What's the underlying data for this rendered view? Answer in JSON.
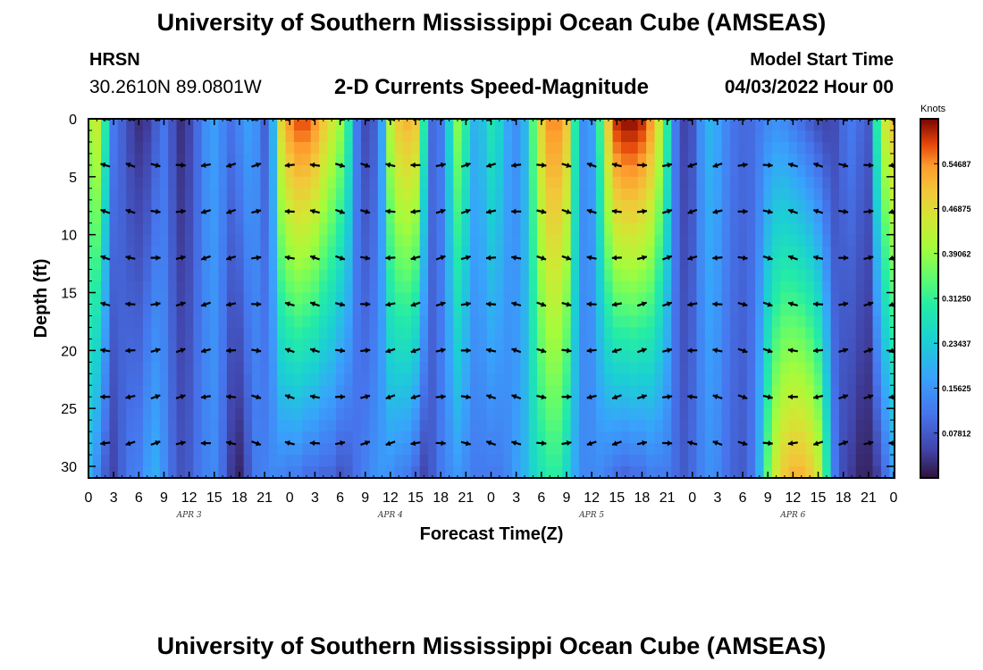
{
  "header": {
    "title": "University of Southern Mississippi Ocean Cube (AMSEAS)",
    "station_id": "HRSN",
    "station_coords": "30.2610N  89.0801W",
    "subtitle": "2-D Currents Speed-Magnitude",
    "model_start_label": "Model Start Time",
    "model_start_value": "04/03/2022 Hour 00"
  },
  "footer": {
    "title": "University of Southern Mississippi Ocean Cube (AMSEAS)"
  },
  "chart_data": {
    "type": "heatmap",
    "title": "2-D Currents Speed-Magnitude",
    "xlabel": "Forecast Time(Z)",
    "ylabel": "Depth (ft)",
    "xlim": [
      0,
      96
    ],
    "ylim": [
      31,
      0
    ],
    "x_ticks": [
      0,
      3,
      6,
      9,
      12,
      15,
      18,
      21,
      24,
      27,
      30,
      33,
      36,
      39,
      42,
      45,
      48,
      51,
      54,
      57,
      60,
      63,
      66,
      69,
      72,
      75,
      78,
      81,
      84,
      87,
      90,
      93,
      96
    ],
    "x_tick_labels": [
      "0",
      "3",
      "6",
      "9",
      "12",
      "15",
      "18",
      "21",
      "0",
      "3",
      "6",
      "9",
      "12",
      "15",
      "18",
      "21",
      "0",
      "3",
      "6",
      "9",
      "12",
      "15",
      "18",
      "21",
      "0",
      "3",
      "6",
      "9",
      "12",
      "15",
      "18",
      "21",
      "0"
    ],
    "day_labels": [
      {
        "text": "APR 3",
        "at_hour": 12
      },
      {
        "text": "APR 4",
        "at_hour": 36
      },
      {
        "text": "APR 5",
        "at_hour": 60
      },
      {
        "text": "APR 6",
        "at_hour": 84
      }
    ],
    "y_ticks": [
      0,
      5,
      10,
      15,
      20,
      25,
      30
    ],
    "y_tick_labels": [
      "0",
      "5",
      "10",
      "15",
      "20",
      "25",
      "30"
    ],
    "colorbar": {
      "title": "Knots",
      "range": [
        0,
        0.625
      ],
      "ticks": [
        0.078125,
        0.15625,
        0.234375,
        0.3125,
        0.390625,
        0.46875,
        0.546875
      ],
      "tick_labels": [
        "0.07812",
        "0.15625",
        "0.23437",
        "0.31250",
        "0.39062",
        "0.46875",
        "0.54687"
      ]
    },
    "arrow_depths_ft": [
      0,
      4,
      8,
      12,
      16,
      20,
      24,
      28
    ],
    "arrow_hours": [
      2,
      5,
      8,
      11,
      14,
      17,
      20,
      24,
      27,
      30,
      33,
      36,
      39,
      42,
      45,
      48,
      51,
      54,
      57,
      60,
      63,
      66,
      69,
      72,
      75,
      78,
      81,
      84,
      87,
      90,
      93,
      96
    ],
    "speed_profiles": [
      {
        "hour": 0,
        "surface": 0.4,
        "bottom": 0.2
      },
      {
        "hour": 1,
        "surface": 0.44,
        "bottom": 0.14
      },
      {
        "hour": 2,
        "surface": 0.3,
        "bottom": 0.08
      },
      {
        "hour": 3,
        "surface": 0.12,
        "bottom": 0.05
      },
      {
        "hour": 4,
        "surface": 0.09,
        "bottom": 0.09
      },
      {
        "hour": 5,
        "surface": 0.05,
        "bottom": 0.12
      },
      {
        "hour": 6,
        "surface": 0.03,
        "bottom": 0.13
      },
      {
        "hour": 7,
        "surface": 0.04,
        "bottom": 0.17
      },
      {
        "hour": 8,
        "surface": 0.08,
        "bottom": 0.19
      },
      {
        "hour": 9,
        "surface": 0.11,
        "bottom": 0.15
      },
      {
        "hour": 10,
        "surface": 0.07,
        "bottom": 0.1
      },
      {
        "hour": 11,
        "surface": 0.03,
        "bottom": 0.07
      },
      {
        "hour": 12,
        "surface": 0.05,
        "bottom": 0.08
      },
      {
        "hour": 13,
        "surface": 0.1,
        "bottom": 0.11
      },
      {
        "hour": 14,
        "surface": 0.15,
        "bottom": 0.13
      },
      {
        "hour": 15,
        "surface": 0.17,
        "bottom": 0.14
      },
      {
        "hour": 16,
        "surface": 0.14,
        "bottom": 0.1
      },
      {
        "hour": 17,
        "surface": 0.11,
        "bottom": 0.04
      },
      {
        "hour": 18,
        "surface": 0.14,
        "bottom": 0.02
      },
      {
        "hour": 19,
        "surface": 0.17,
        "bottom": 0.07
      },
      {
        "hour": 20,
        "surface": 0.15,
        "bottom": 0.12
      },
      {
        "hour": 21,
        "surface": 0.09,
        "bottom": 0.13
      },
      {
        "hour": 22,
        "surface": 0.2,
        "bottom": 0.14
      },
      {
        "hour": 23,
        "surface": 0.48,
        "bottom": 0.13
      },
      {
        "hour": 24,
        "surface": 0.55,
        "bottom": 0.12
      },
      {
        "hour": 25,
        "surface": 0.58,
        "bottom": 0.12
      },
      {
        "hour": 26,
        "surface": 0.58,
        "bottom": 0.1
      },
      {
        "hour": 27,
        "surface": 0.55,
        "bottom": 0.1
      },
      {
        "hour": 28,
        "surface": 0.5,
        "bottom": 0.09
      },
      {
        "hour": 29,
        "surface": 0.45,
        "bottom": 0.09
      },
      {
        "hour": 30,
        "surface": 0.4,
        "bottom": 0.07
      },
      {
        "hour": 31,
        "surface": 0.3,
        "bottom": 0.08
      },
      {
        "hour": 32,
        "surface": 0.12,
        "bottom": 0.11
      },
      {
        "hour": 33,
        "surface": 0.06,
        "bottom": 0.13
      },
      {
        "hour": 34,
        "surface": 0.08,
        "bottom": 0.15
      },
      {
        "hour": 35,
        "surface": 0.18,
        "bottom": 0.16
      },
      {
        "hour": 36,
        "surface": 0.42,
        "bottom": 0.15
      },
      {
        "hour": 37,
        "surface": 0.5,
        "bottom": 0.13
      },
      {
        "hour": 38,
        "surface": 0.52,
        "bottom": 0.12
      },
      {
        "hour": 39,
        "surface": 0.5,
        "bottom": 0.09
      },
      {
        "hour": 40,
        "surface": 0.3,
        "bottom": 0.05
      },
      {
        "hour": 41,
        "surface": 0.1,
        "bottom": 0.08
      },
      {
        "hour": 42,
        "surface": 0.12,
        "bottom": 0.12
      },
      {
        "hour": 43,
        "surface": 0.25,
        "bottom": 0.14
      },
      {
        "hour": 44,
        "surface": 0.38,
        "bottom": 0.16
      },
      {
        "hour": 45,
        "surface": 0.3,
        "bottom": 0.14
      },
      {
        "hour": 46,
        "surface": 0.2,
        "bottom": 0.12
      },
      {
        "hour": 47,
        "surface": 0.22,
        "bottom": 0.12
      },
      {
        "hour": 48,
        "surface": 0.28,
        "bottom": 0.12
      },
      {
        "hour": 49,
        "surface": 0.25,
        "bottom": 0.12
      },
      {
        "hour": 50,
        "surface": 0.18,
        "bottom": 0.14
      },
      {
        "hour": 51,
        "surface": 0.15,
        "bottom": 0.17
      },
      {
        "hour": 52,
        "surface": 0.2,
        "bottom": 0.2
      },
      {
        "hour": 53,
        "surface": 0.34,
        "bottom": 0.25
      },
      {
        "hour": 54,
        "surface": 0.48,
        "bottom": 0.28
      },
      {
        "hour": 55,
        "surface": 0.55,
        "bottom": 0.3
      },
      {
        "hour": 56,
        "surface": 0.55,
        "bottom": 0.3
      },
      {
        "hour": 57,
        "surface": 0.5,
        "bottom": 0.25
      },
      {
        "hour": 58,
        "surface": 0.3,
        "bottom": 0.18
      },
      {
        "hour": 59,
        "surface": 0.15,
        "bottom": 0.14
      },
      {
        "hour": 60,
        "surface": 0.17,
        "bottom": 0.14
      },
      {
        "hour": 61,
        "surface": 0.32,
        "bottom": 0.14
      },
      {
        "hour": 62,
        "surface": 0.5,
        "bottom": 0.12
      },
      {
        "hour": 63,
        "surface": 0.6,
        "bottom": 0.1
      },
      {
        "hour": 64,
        "surface": 0.62,
        "bottom": 0.09
      },
      {
        "hour": 65,
        "surface": 0.62,
        "bottom": 0.1
      },
      {
        "hour": 66,
        "surface": 0.6,
        "bottom": 0.1
      },
      {
        "hour": 67,
        "surface": 0.55,
        "bottom": 0.12
      },
      {
        "hour": 68,
        "surface": 0.45,
        "bottom": 0.12
      },
      {
        "hour": 69,
        "surface": 0.3,
        "bottom": 0.12
      },
      {
        "hour": 70,
        "surface": 0.12,
        "bottom": 0.1
      },
      {
        "hour": 71,
        "surface": 0.05,
        "bottom": 0.08
      },
      {
        "hour": 72,
        "surface": 0.07,
        "bottom": 0.1
      },
      {
        "hour": 73,
        "surface": 0.15,
        "bottom": 0.13
      },
      {
        "hour": 74,
        "surface": 0.2,
        "bottom": 0.15
      },
      {
        "hour": 75,
        "surface": 0.18,
        "bottom": 0.14
      },
      {
        "hour": 76,
        "surface": 0.14,
        "bottom": 0.11
      },
      {
        "hour": 77,
        "surface": 0.11,
        "bottom": 0.09
      },
      {
        "hour": 78,
        "surface": 0.1,
        "bottom": 0.08
      },
      {
        "hour": 79,
        "surface": 0.1,
        "bottom": 0.11
      },
      {
        "hour": 80,
        "surface": 0.12,
        "bottom": 0.2
      },
      {
        "hour": 81,
        "surface": 0.14,
        "bottom": 0.35
      },
      {
        "hour": 82,
        "surface": 0.15,
        "bottom": 0.45
      },
      {
        "hour": 83,
        "surface": 0.14,
        "bottom": 0.5
      },
      {
        "hour": 84,
        "surface": 0.12,
        "bottom": 0.52
      },
      {
        "hour": 85,
        "surface": 0.1,
        "bottom": 0.52
      },
      {
        "hour": 86,
        "surface": 0.08,
        "bottom": 0.5
      },
      {
        "hour": 87,
        "surface": 0.06,
        "bottom": 0.45
      },
      {
        "hour": 88,
        "surface": 0.05,
        "bottom": 0.3
      },
      {
        "hour": 89,
        "surface": 0.06,
        "bottom": 0.12
      },
      {
        "hour": 90,
        "surface": 0.1,
        "bottom": 0.06
      },
      {
        "hour": 91,
        "surface": 0.12,
        "bottom": 0.04
      },
      {
        "hour": 92,
        "surface": 0.1,
        "bottom": 0.02
      },
      {
        "hour": 93,
        "surface": 0.08,
        "bottom": 0.02
      },
      {
        "hour": 94,
        "surface": 0.3,
        "bottom": 0.04
      },
      {
        "hour": 95,
        "surface": 0.45,
        "bottom": 0.1
      },
      {
        "hour": 96,
        "surface": 0.5,
        "bottom": 0.16
      }
    ]
  }
}
